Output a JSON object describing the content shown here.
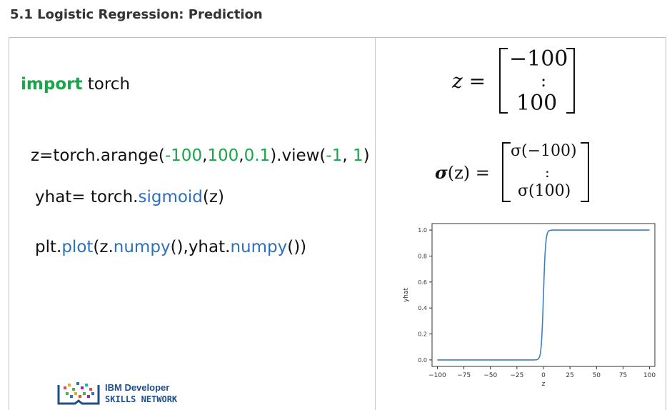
{
  "page": {
    "heading": "5.1 Logistic Regression: Prediction"
  },
  "code": {
    "line1": {
      "kw": "import",
      "rest": " torch"
    },
    "line2": {
      "p1": "z=torch.arange(",
      "n1": "-100",
      "c1": ",",
      "n2": "100",
      "c2": ",",
      "n3": "0.1",
      "p2": ").view(",
      "n4": "-1",
      "c3": ",  ",
      "n5": "1",
      "p3": ")"
    },
    "line3": {
      "p1": "yhat= torch.",
      "fn": "sigmoid",
      "p2": "(z)"
    },
    "line4": {
      "p1": "plt.",
      "fn1": "plot",
      "p2": "(z.",
      "fn2": "numpy",
      "p3": "(),yhat.",
      "fn3": "numpy",
      "p4": "())"
    }
  },
  "math": {
    "z_lhs": "z =",
    "z_top": "−100",
    "z_mid": ":",
    "z_bot": "100",
    "s_lhs_sym": "σ",
    "s_lhs_rest": "(z) =",
    "s_top": "σ(−100)",
    "s_mid": ":",
    "s_bot": "σ(100)"
  },
  "logo": {
    "line1": "IBM Developer",
    "line2": "SKILLS NETWORK"
  },
  "chart_data": {
    "type": "line",
    "xlabel": "z",
    "ylabel": "yhat",
    "xlim": [
      -105,
      105
    ],
    "ylim": [
      -0.05,
      1.05
    ],
    "xticks": [
      -100,
      -75,
      -50,
      -25,
      0,
      25,
      50,
      75,
      100
    ],
    "xtick_labels": [
      "−100",
      "−75",
      "−50",
      "−25",
      "0",
      "25",
      "50",
      "75",
      "100"
    ],
    "yticks": [
      0.0,
      0.2,
      0.4,
      0.6,
      0.8,
      1.0
    ],
    "ytick_labels": [
      "0.0",
      "0.2",
      "0.4",
      "0.6",
      "0.8",
      "1.0"
    ],
    "grid": false,
    "series": [
      {
        "color": "#3b7fc4",
        "function": "sigmoid",
        "x_range": [
          -100,
          100
        ]
      }
    ]
  }
}
